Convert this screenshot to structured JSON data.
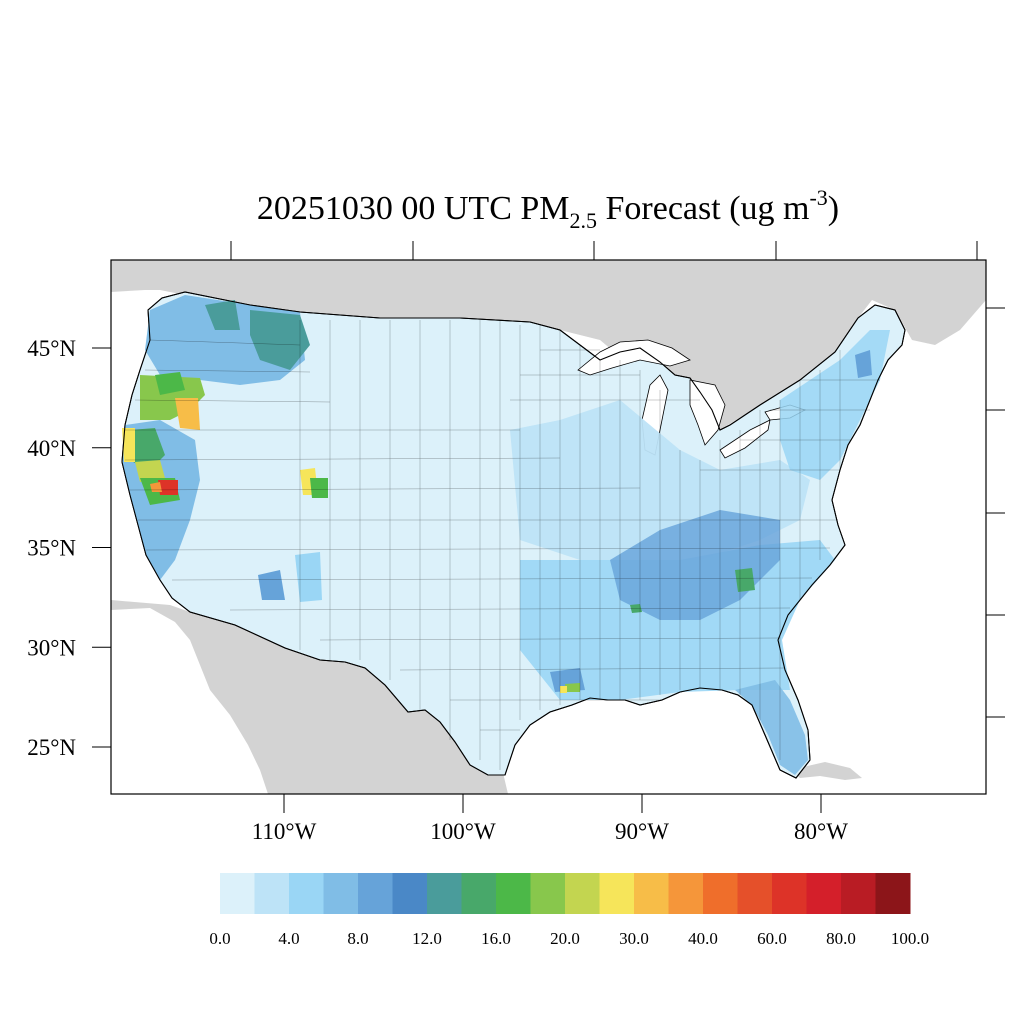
{
  "title": {
    "prefix": "20251030 00 UTC PM",
    "subscript": "2.5",
    "middle": " Forecast (ug m",
    "superscript": "-3",
    "suffix": ")"
  },
  "axes": {
    "lat_ticks": [
      {
        "value": 45,
        "label": "45°N"
      },
      {
        "value": 40,
        "label": "40°N"
      },
      {
        "value": 35,
        "label": "35°N"
      },
      {
        "value": 30,
        "label": "30°N"
      },
      {
        "value": 25,
        "label": "25°N"
      }
    ],
    "lon_ticks": [
      {
        "value": -110,
        "label": "110°W"
      },
      {
        "value": -100,
        "label": "100°W"
      },
      {
        "value": -90,
        "label": "90°W"
      },
      {
        "value": -80,
        "label": "80°W"
      }
    ]
  },
  "colorbar": {
    "colors": [
      "#dcf1fa",
      "#bde3f7",
      "#9ad6f5",
      "#80bde6",
      "#66a3d9",
      "#4a88c7",
      "#4a9c9b",
      "#48a86a",
      "#4cb848",
      "#88c74c",
      "#c3d550",
      "#f6e55a",
      "#f7bd48",
      "#f5963a",
      "#ef6e2b",
      "#e5502a",
      "#dd3328",
      "#d41f2a",
      "#b91c24",
      "#8c1519"
    ],
    "labels": [
      "0.0",
      "4.0",
      "8.0",
      "12.0",
      "16.0",
      "20.0",
      "30.0",
      "40.0",
      "60.0",
      "80.0",
      "100.0"
    ]
  },
  "map": {
    "ocean_color": "#ffffff",
    "foreign_land_color": "#d3d3d3",
    "regions": [
      {
        "name": "northern-plains",
        "color": "#dcf1fa"
      },
      {
        "name": "great-basin",
        "color": "#dcf1fa"
      },
      {
        "name": "southwest",
        "color": "#dcf1fa"
      },
      {
        "name": "texas",
        "color": "#dcf1fa"
      },
      {
        "name": "midwest",
        "color": "#bde3f7"
      },
      {
        "name": "southeast",
        "color": "#9ad6f5"
      },
      {
        "name": "northeast",
        "color": "#9ad6f5"
      },
      {
        "name": "pacific-northwest",
        "color": "#80bde6"
      },
      {
        "name": "california",
        "color": "#80bde6"
      },
      {
        "name": "north-idaho",
        "color": "#4a9c9b"
      },
      {
        "name": "southern-oregon",
        "color": "#88c74c"
      },
      {
        "name": "oregon-hotspot",
        "color": "#f7bd48"
      },
      {
        "name": "california-hotspot",
        "color": "#dd3328"
      },
      {
        "name": "utah-hotspot",
        "color": "#4cb848"
      },
      {
        "name": "tennessee-valley",
        "color": "#66a3d9"
      },
      {
        "name": "georgia-hotspot",
        "color": "#48a86a"
      },
      {
        "name": "louisiana-hotspot",
        "color": "#88c74c"
      }
    ]
  }
}
